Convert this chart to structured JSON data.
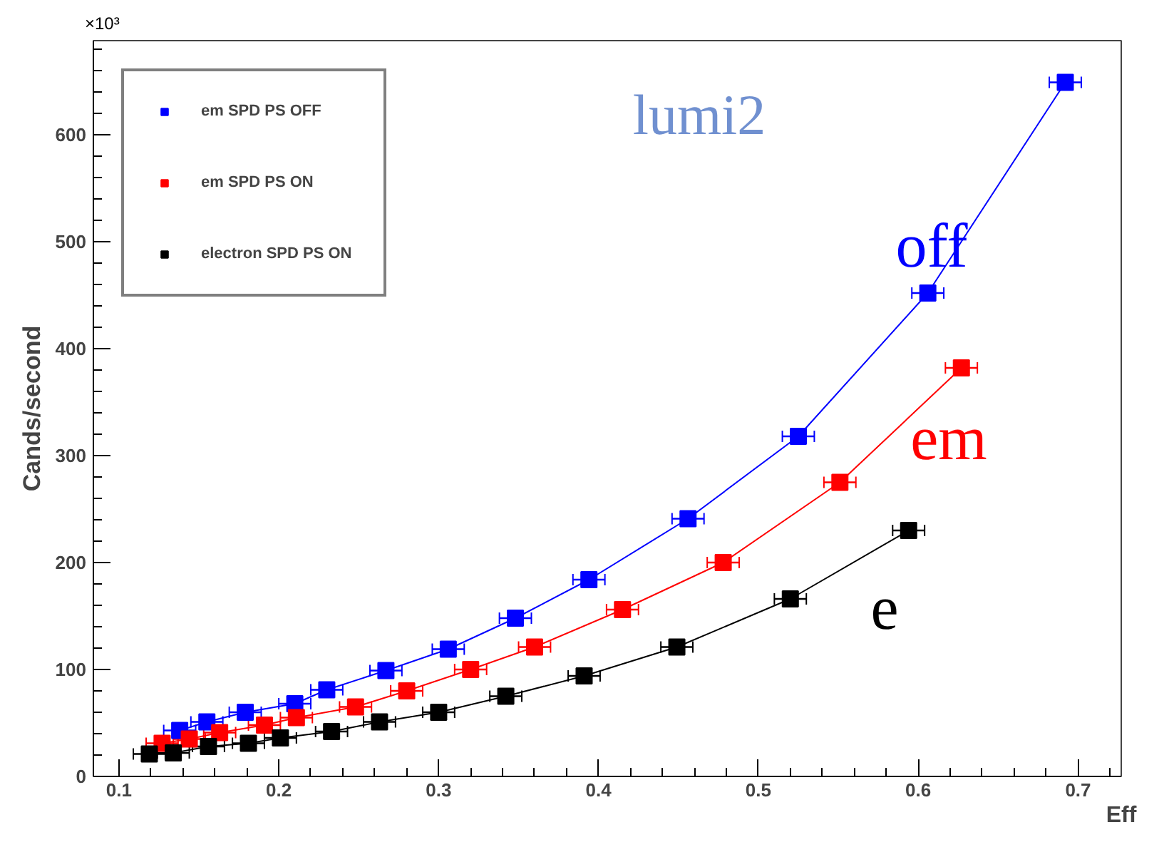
{
  "chart_data": {
    "type": "line",
    "xlabel": "Eff",
    "ylabel": "Cands/second",
    "xlim": [
      0.084,
      0.727
    ],
    "ylim": [
      0,
      688
    ],
    "xticks": [
      0.1,
      0.2,
      0.3,
      0.4,
      0.5,
      0.6,
      0.7
    ],
    "yticks": [
      0,
      100,
      200,
      300,
      400,
      500,
      600
    ],
    "grid": false,
    "legend": "top left",
    "marker": "square",
    "line_style": "solid",
    "series": [
      {
        "name": "em SPD PS OFF",
        "color": "#0000ff",
        "x": [
          0.138,
          0.155,
          0.179,
          0.21,
          0.23,
          0.267,
          0.306,
          0.348,
          0.394,
          0.456,
          0.525,
          0.606,
          0.692
        ],
        "values": [
          43,
          51,
          60,
          68,
          81,
          99,
          119,
          148,
          184,
          241,
          318,
          452,
          649
        ],
        "xerrors": [
          0.01,
          0.01,
          0.01,
          0.01,
          0.01,
          0.01,
          0.01,
          0.01,
          0.01,
          0.01,
          0.01,
          0.01,
          0.01
        ]
      },
      {
        "name": "em SPD PS ON",
        "color": "#ff0000",
        "x": [
          0.127,
          0.144,
          0.163,
          0.191,
          0.211,
          0.248,
          0.28,
          0.32,
          0.36,
          0.415,
          0.478,
          0.551,
          0.627
        ],
        "values": [
          31,
          35,
          41,
          48,
          55,
          65,
          80,
          100,
          121,
          156,
          200,
          275,
          382
        ],
        "xerrors": [
          0.01,
          0.01,
          0.01,
          0.01,
          0.01,
          0.01,
          0.01,
          0.01,
          0.01,
          0.01,
          0.01,
          0.01,
          0.01
        ]
      },
      {
        "name": "electron SPD PS ON",
        "color": "#000000",
        "x": [
          0.119,
          0.134,
          0.156,
          0.181,
          0.201,
          0.233,
          0.263,
          0.3,
          0.342,
          0.391,
          0.449,
          0.52,
          0.594
        ],
        "values": [
          21,
          22,
          28,
          31,
          36,
          42,
          51,
          60,
          75,
          94,
          121,
          166,
          230
        ],
        "xerrors": [
          0.01,
          0.01,
          0.01,
          0.01,
          0.01,
          0.01,
          0.01,
          0.01,
          0.01,
          0.01,
          0.01,
          0.01,
          0.01
        ]
      }
    ],
    "annotations": [
      "off",
      "em",
      "e",
      "lumi2",
      "×10³"
    ]
  }
}
